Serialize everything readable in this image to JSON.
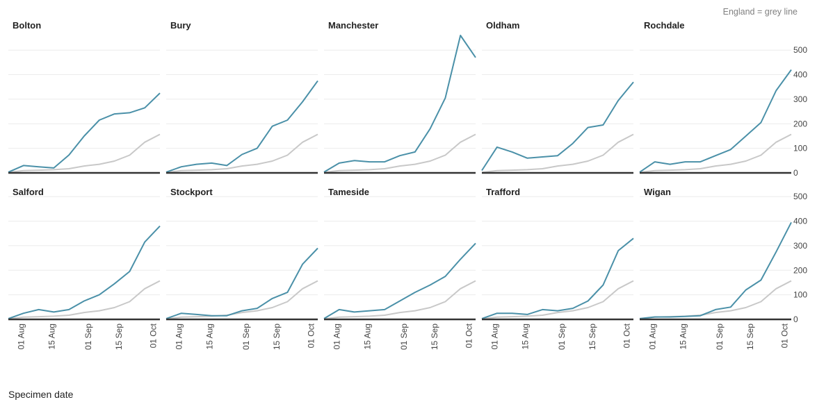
{
  "chart_data": {
    "type": "line",
    "xlabel": "Specimen date",
    "ylabel": "",
    "note": "England = grey line",
    "ylim": [
      0,
      550
    ],
    "y_ticks": [
      0,
      100,
      200,
      300,
      400,
      500
    ],
    "x": [
      "2020-07-26",
      "2020-08-02",
      "2020-08-09",
      "2020-08-16",
      "2020-08-23",
      "2020-08-30",
      "2020-09-06",
      "2020-09-13",
      "2020-09-20",
      "2020-09-27",
      "2020-10-04"
    ],
    "x_ticks": [
      {
        "date": "2020-08-01",
        "label": "01 Aug"
      },
      {
        "date": "2020-08-15",
        "label": "15 Aug"
      },
      {
        "date": "2020-09-01",
        "label": "01 Sep"
      },
      {
        "date": "2020-09-15",
        "label": "15 Sep"
      },
      {
        "date": "2020-10-01",
        "label": "01 Oct"
      }
    ],
    "colors": {
      "area": "#4a90a8",
      "england": "#c8c8c8",
      "baseline": "#333333",
      "grid": "#ebebeb"
    },
    "england": [
      2,
      9,
      11,
      13,
      17,
      28,
      35,
      48,
      72,
      125,
      157
    ],
    "panels": [
      {
        "name": "Bolton",
        "values": [
          3,
          30,
          25,
          20,
          73,
          150,
          215,
          240,
          245,
          265,
          325
        ]
      },
      {
        "name": "Bury",
        "values": [
          3,
          25,
          35,
          40,
          30,
          75,
          100,
          190,
          215,
          290,
          375
        ]
      },
      {
        "name": "Manchester",
        "values": [
          3,
          40,
          50,
          45,
          45,
          70,
          85,
          180,
          305,
          560,
          470
        ]
      },
      {
        "name": "Oldham",
        "values": [
          10,
          105,
          85,
          60,
          65,
          70,
          120,
          185,
          195,
          295,
          370
        ]
      },
      {
        "name": "Rochdale",
        "values": [
          3,
          45,
          35,
          45,
          45,
          70,
          95,
          150,
          205,
          335,
          420
        ]
      },
      {
        "name": "Salford",
        "values": [
          3,
          25,
          40,
          30,
          40,
          75,
          100,
          145,
          195,
          315,
          380
        ]
      },
      {
        "name": "Stockport",
        "values": [
          3,
          25,
          20,
          15,
          15,
          35,
          45,
          85,
          110,
          225,
          290
        ]
      },
      {
        "name": "Tameside",
        "values": [
          3,
          40,
          30,
          35,
          40,
          75,
          110,
          140,
          175,
          245,
          310
        ]
      },
      {
        "name": "Trafford",
        "values": [
          3,
          25,
          25,
          20,
          40,
          35,
          45,
          75,
          140,
          280,
          330
        ]
      },
      {
        "name": "Wigan",
        "values": [
          3,
          10,
          10,
          12,
          15,
          40,
          50,
          120,
          160,
          275,
          395
        ]
      }
    ]
  }
}
